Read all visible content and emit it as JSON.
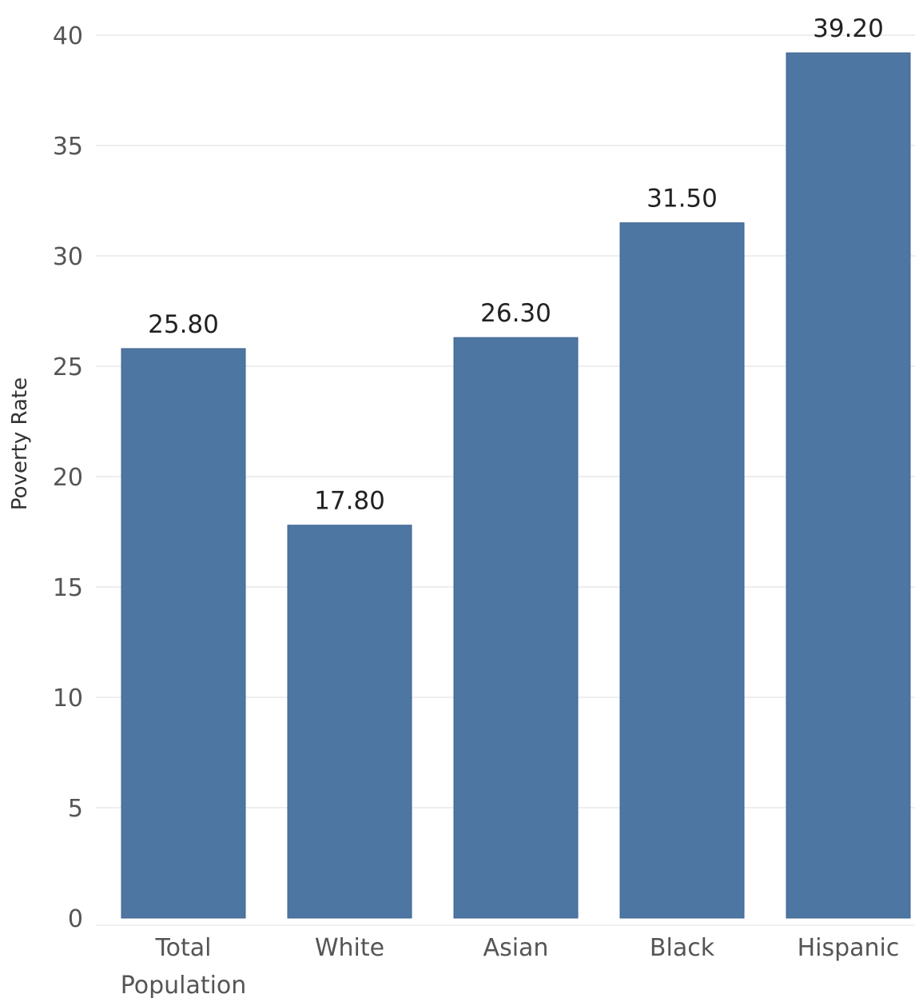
{
  "chart_data": {
    "type": "bar",
    "title": "",
    "xlabel": "",
    "ylabel": "Poverty Rate",
    "categories": [
      [
        "Total",
        "Population"
      ],
      [
        "White"
      ],
      [
        "Asian"
      ],
      [
        "Black"
      ],
      [
        "Hispanic"
      ]
    ],
    "values": [
      25.8,
      17.8,
      26.3,
      31.5,
      39.2
    ],
    "value_labels": [
      "25.80",
      "17.80",
      "26.30",
      "31.50",
      "39.20"
    ],
    "yticks": [
      0,
      5,
      10,
      15,
      20,
      25,
      30,
      35,
      40
    ],
    "ylim": [
      0,
      40
    ],
    "grid": true,
    "colors": {
      "bar": "#4e76a3",
      "grid": "#eeeeee"
    }
  }
}
